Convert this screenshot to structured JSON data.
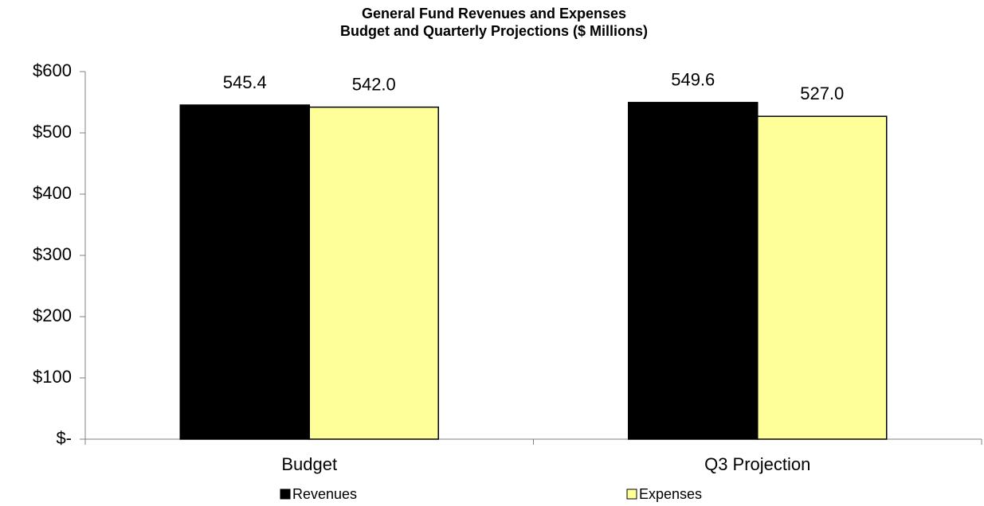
{
  "chart_data": {
    "type": "bar",
    "title": "General Fund Revenues and Expenses",
    "subtitle": "Budget and Quarterly Projections ($ Millions)",
    "categories": [
      "Budget",
      "Q3 Projection"
    ],
    "series": [
      {
        "name": "Revenues",
        "color": "#000000",
        "values": [
          545.4,
          549.6
        ],
        "value_labels": [
          "545.4",
          "549.6"
        ]
      },
      {
        "name": "Expenses",
        "color": "#ffff99",
        "values": [
          542.0,
          527.0
        ],
        "value_labels": [
          "542.0",
          "527.0"
        ]
      }
    ],
    "ylim": [
      0,
      600
    ],
    "yticks": [
      {
        "value": 0,
        "label": "$-"
      },
      {
        "value": 100,
        "label": "$100"
      },
      {
        "value": 200,
        "label": "$200"
      },
      {
        "value": 300,
        "label": "$300"
      },
      {
        "value": 400,
        "label": "$400"
      },
      {
        "value": 500,
        "label": "$500"
      },
      {
        "value": 600,
        "label": "$600"
      }
    ],
    "grid": false,
    "legend": "bottom"
  }
}
